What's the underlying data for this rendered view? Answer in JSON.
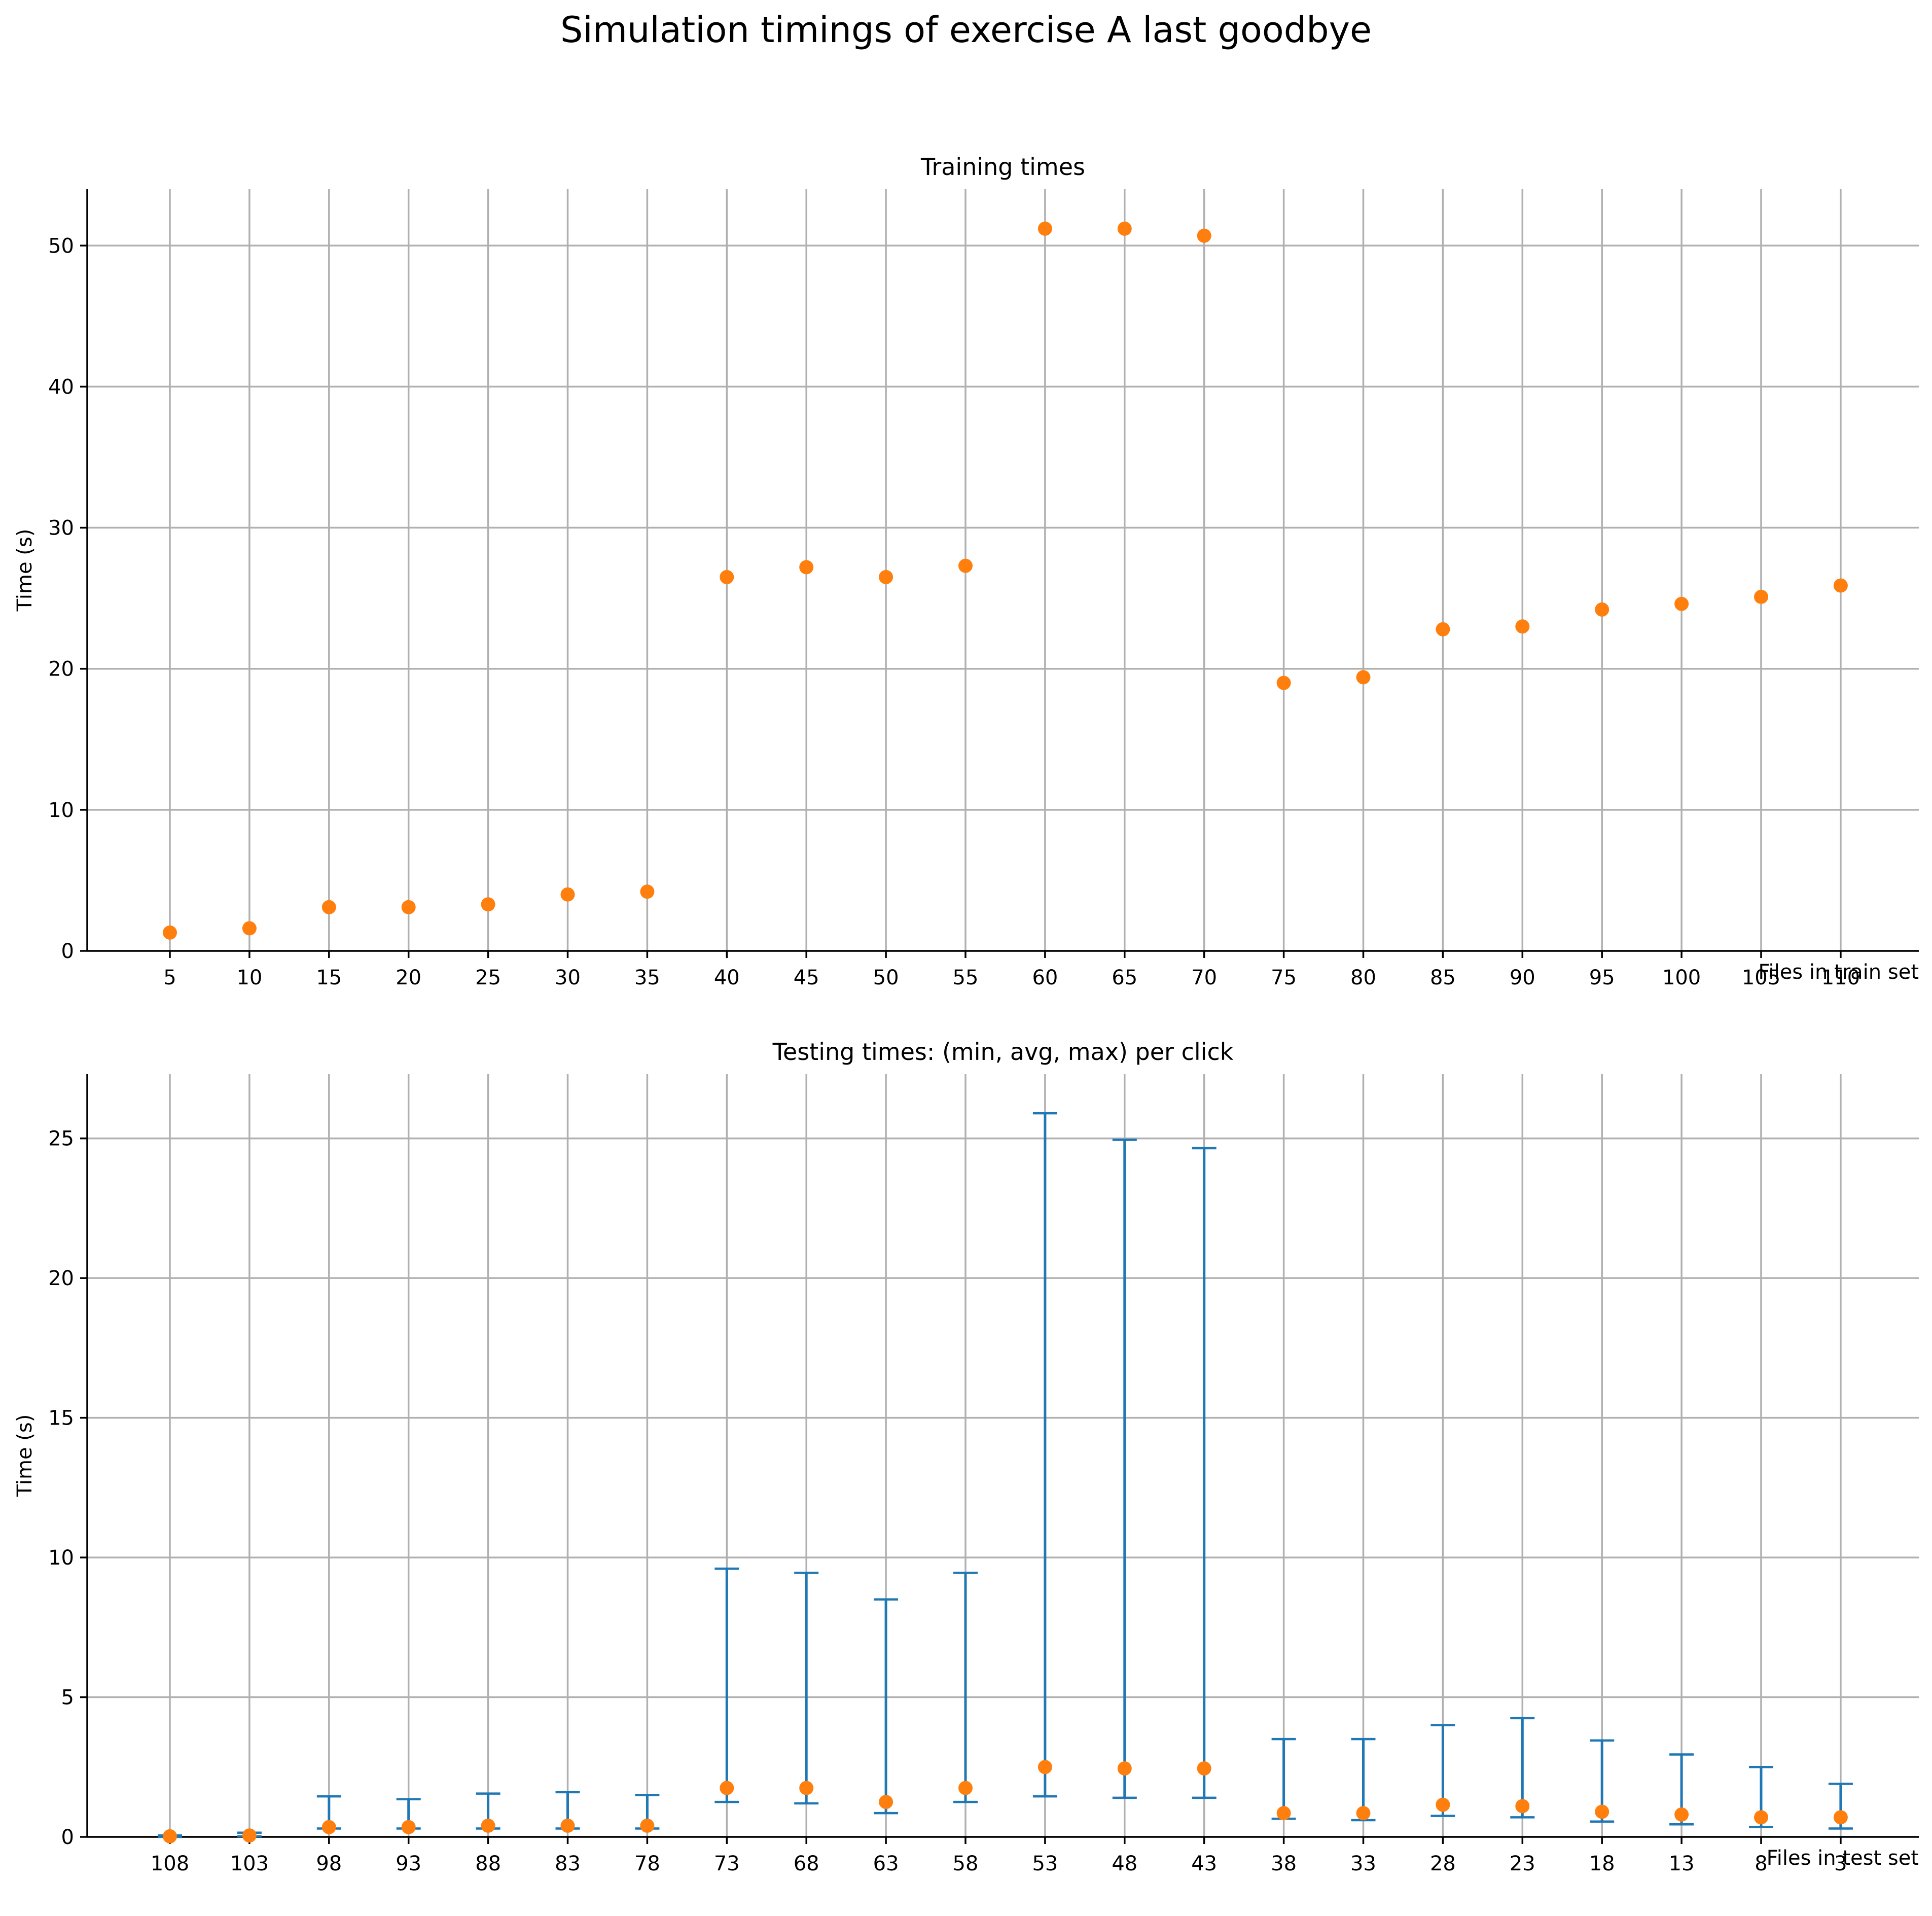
{
  "figure": {
    "title": "Simulation timings of exercise A last goodbye"
  },
  "colors": {
    "grid": "#b0b0b0",
    "avg_marker": "#ff7f0e",
    "errorbar": "#1f77b4",
    "axis": "#000000"
  },
  "chart_data": [
    {
      "type": "scatter",
      "title": "Training times",
      "xlabel": "Files in train set",
      "ylabel": "Time (s)",
      "grid": true,
      "ylim": [
        0,
        54
      ],
      "yticks": [
        0,
        10,
        20,
        30,
        40,
        50
      ],
      "categories": [
        "5",
        "10",
        "15",
        "20",
        "25",
        "30",
        "35",
        "40",
        "45",
        "50",
        "55",
        "60",
        "65",
        "70",
        "75",
        "80",
        "85",
        "90",
        "95",
        "100",
        "105",
        "110"
      ],
      "series": [
        {
          "values": [
            1.3,
            1.6,
            3.1,
            3.1,
            3.3,
            4.0,
            4.2,
            26.5,
            27.2,
            26.5,
            27.3,
            51.2,
            51.2,
            50.7,
            19.0,
            19.4,
            22.8,
            23.0,
            24.2,
            24.6,
            25.1,
            25.9
          ]
        }
      ]
    },
    {
      "type": "errorbar",
      "title": "Testing times: (min, avg, max) per click",
      "xlabel": "Files in test set",
      "ylabel": "Time (s)",
      "grid": true,
      "ylim": [
        0,
        27.3
      ],
      "yticks": [
        0,
        5,
        10,
        15,
        20,
        25
      ],
      "categories": [
        "108",
        "103",
        "98",
        "93",
        "88",
        "83",
        "78",
        "73",
        "68",
        "63",
        "58",
        "53",
        "48",
        "43",
        "38",
        "33",
        "28",
        "23",
        "18",
        "13",
        "8",
        "3"
      ],
      "series": [
        {
          "min": [
            0.0,
            0.02,
            0.3,
            0.3,
            0.3,
            0.3,
            0.3,
            1.25,
            1.2,
            0.85,
            1.25,
            1.45,
            1.4,
            1.4,
            0.65,
            0.6,
            0.75,
            0.7,
            0.55,
            0.45,
            0.35,
            0.3
          ],
          "avg": [
            0.02,
            0.05,
            0.35,
            0.35,
            0.4,
            0.4,
            0.4,
            1.75,
            1.75,
            1.25,
            1.75,
            2.5,
            2.45,
            2.45,
            0.85,
            0.85,
            1.15,
            1.1,
            0.9,
            0.8,
            0.7,
            0.7
          ],
          "max": [
            0.05,
            0.15,
            1.45,
            1.35,
            1.55,
            1.6,
            1.5,
            9.6,
            9.45,
            8.5,
            9.45,
            25.9,
            24.95,
            24.65,
            3.5,
            3.5,
            4.0,
            4.25,
            3.45,
            2.95,
            2.5,
            1.9
          ]
        }
      ]
    }
  ]
}
